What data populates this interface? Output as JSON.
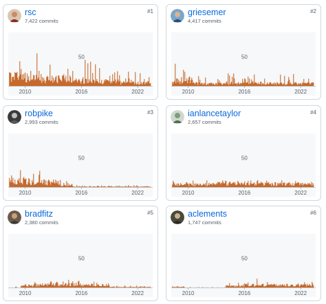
{
  "colors": {
    "bar": "#bc4c00",
    "axis": "#8c959f",
    "link": "#0969da"
  },
  "contributors": [
    {
      "login": "rsc",
      "commits_label": "7,422 commits",
      "rank_label": "#1",
      "avatar_icon": "user-avatar-icon"
    },
    {
      "login": "griesemer",
      "commits_label": "4,417 commits",
      "rank_label": "#2",
      "avatar_icon": "user-avatar-icon"
    },
    {
      "login": "robpike",
      "commits_label": "2,993 commits",
      "rank_label": "#3",
      "avatar_icon": "user-avatar-icon"
    },
    {
      "login": "ianlancetaylor",
      "commits_label": "2,657 commits",
      "rank_label": "#4",
      "avatar_icon": "user-avatar-icon"
    },
    {
      "login": "bradfitz",
      "commits_label": "2,380 commits",
      "rank_label": "#5",
      "avatar_icon": "user-avatar-icon"
    },
    {
      "login": "aclements",
      "commits_label": "1,747 commits",
      "rank_label": "#6",
      "avatar_icon": "user-avatar-icon"
    }
  ],
  "chart_data": {
    "type": "bar",
    "y_tick_labels": [
      "50"
    ],
    "y_tick_values": [
      50
    ],
    "ylim": [
      0,
      80
    ],
    "x_tick_labels": [
      "2010",
      "2016",
      "2022"
    ],
    "x_tick_values": [
      2010,
      2016,
      2022
    ],
    "xlim": [
      2008.2,
      2023.6
    ],
    "series_profiles": [
      {
        "contributor": "rsc",
        "segments": [
          [
            2008.3,
            2011.5,
            20,
            72
          ],
          [
            2011.5,
            2015,
            14,
            60
          ],
          [
            2015,
            2020,
            10,
            45
          ],
          [
            2020,
            2023.4,
            7,
            25
          ]
        ]
      },
      {
        "contributor": "griesemer",
        "segments": [
          [
            2008.3,
            2009.8,
            10,
            78
          ],
          [
            2009.8,
            2014,
            5,
            18
          ],
          [
            2014,
            2018,
            6,
            22
          ],
          [
            2018,
            2023.4,
            5,
            24
          ]
        ]
      },
      {
        "contributor": "robpike",
        "segments": [
          [
            2008.3,
            2010.5,
            12,
            30
          ],
          [
            2010.5,
            2013.8,
            10,
            40
          ],
          [
            2013.8,
            2015,
            4,
            12
          ],
          [
            2015,
            2023.4,
            1,
            4
          ]
        ]
      },
      {
        "contributor": "ianlancetaylor",
        "segments": [
          [
            2008.3,
            2013,
            5,
            12
          ],
          [
            2013,
            2018,
            7,
            16
          ],
          [
            2018,
            2023.4,
            6,
            14
          ]
        ]
      },
      {
        "contributor": "bradfitz",
        "segments": [
          [
            2008.3,
            2009.5,
            0,
            2
          ],
          [
            2009.5,
            2011,
            3,
            8
          ],
          [
            2011,
            2016.5,
            6,
            18
          ],
          [
            2016.5,
            2019,
            5,
            14
          ],
          [
            2019,
            2023.4,
            1,
            4
          ]
        ]
      },
      {
        "contributor": "aclements",
        "segments": [
          [
            2008.3,
            2009.6,
            2,
            16
          ],
          [
            2009.6,
            2014,
            0,
            1
          ],
          [
            2014,
            2016,
            3,
            8
          ],
          [
            2016,
            2023.4,
            5,
            16
          ]
        ]
      }
    ]
  }
}
